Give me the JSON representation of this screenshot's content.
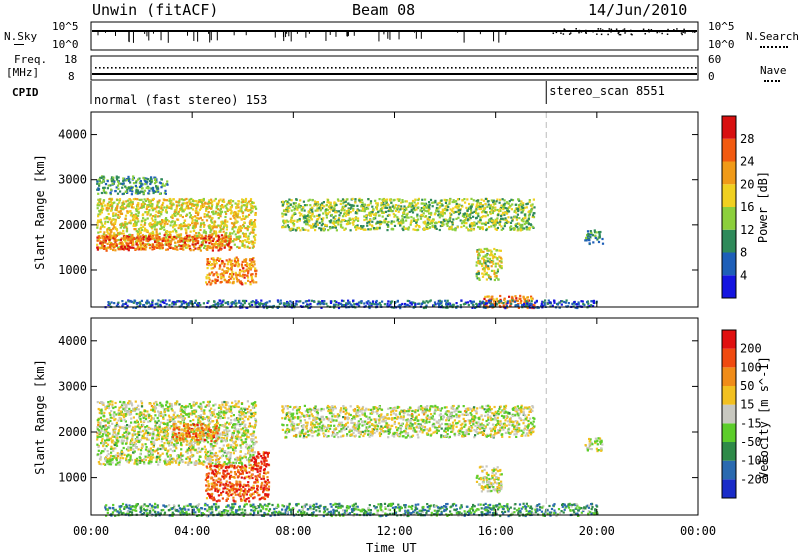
{
  "header": {
    "station": "Unwin (fitACF)",
    "beam": "Beam 08",
    "date": "14/Jun/2010"
  },
  "top_panels": {
    "nsky_label": "N.Sky",
    "nsky_ticks": [
      "10^5",
      "10^0"
    ],
    "nsearch_label": "N.Search",
    "nsearch_ticks": [
      "10^5",
      "10^0"
    ],
    "freq_label": "Freq.",
    "freq_unit": "[MHz]",
    "freq_ticks": [
      "18",
      "8"
    ],
    "nave_label": "Nave",
    "nave_ticks": [
      "60",
      "0"
    ],
    "cpid_label": "CPID",
    "cpid_segments": [
      {
        "start": 0,
        "end": 18,
        "label": "normal (fast stereo) 153"
      },
      {
        "start": 18,
        "end": 24,
        "label": "stereo_scan 8551"
      }
    ]
  },
  "x_axis": {
    "label": "Time UT",
    "ticks": [
      "00:00",
      "04:00",
      "08:00",
      "12:00",
      "16:00",
      "20:00",
      "00:00"
    ],
    "range_hours": [
      0,
      24
    ]
  },
  "chart_data": [
    {
      "type": "heatmap",
      "title": "Power",
      "ylabel": "Slant Range [km]",
      "y_ticks": [
        "1000",
        "2000",
        "3000",
        "4000"
      ],
      "ylim": [
        180,
        4500
      ],
      "xlim": [
        0,
        24
      ],
      "colorbar": {
        "label": "Power [dB]",
        "ticks": [
          "4",
          "8",
          "12",
          "16",
          "20",
          "24",
          "28"
        ],
        "colors": [
          "#1515e0",
          "#1e5fb8",
          "#2f8a5a",
          "#8ccf3c",
          "#f0d020",
          "#f09a18",
          "#f25a10",
          "#d81010"
        ]
      },
      "bands": [
        {
          "t0": 0.2,
          "t1": 6.5,
          "r0": 1500,
          "r1": 2600,
          "level": 0.55
        },
        {
          "t0": 0.2,
          "t1": 5.5,
          "r0": 1450,
          "r1": 1800,
          "level": 0.8
        },
        {
          "t0": 4.5,
          "t1": 6.5,
          "r0": 700,
          "r1": 1300,
          "level": 0.72
        },
        {
          "t0": 0.2,
          "t1": 3.0,
          "r0": 2700,
          "r1": 3100,
          "level": 0.3
        },
        {
          "t0": 7.5,
          "t1": 17.5,
          "r0": 1900,
          "r1": 2600,
          "level": 0.45
        },
        {
          "t0": 15.2,
          "t1": 16.2,
          "r0": 800,
          "r1": 1500,
          "level": 0.5
        },
        {
          "t0": 15.5,
          "t1": 17.5,
          "r0": 180,
          "r1": 450,
          "level": 0.75
        },
        {
          "t0": 0.5,
          "t1": 20.0,
          "r0": 180,
          "r1": 350,
          "level": 0.2
        },
        {
          "t0": 19.5,
          "t1": 20.2,
          "r0": 1600,
          "r1": 1900,
          "level": 0.3
        }
      ]
    },
    {
      "type": "heatmap",
      "title": "Velocity",
      "ylabel": "Slant Range [km]",
      "y_ticks": [
        "1000",
        "2000",
        "3000",
        "4000"
      ],
      "ylim": [
        180,
        4500
      ],
      "xlim": [
        0,
        24
      ],
      "colorbar": {
        "label": "Velocity [m s^-1]",
        "ticks": [
          "200",
          "100",
          "50",
          "15",
          "-15",
          "-50",
          "-100",
          "-200"
        ],
        "colors": [
          "#1a2cc8",
          "#2a6ab0",
          "#2e8a48",
          "#5ccd2a",
          "#c8c8c0",
          "#f2c020",
          "#f08c18",
          "#f04a10",
          "#e01010"
        ]
      },
      "bands": [
        {
          "t0": 0.2,
          "t1": 6.5,
          "r0": 1300,
          "r1": 2700,
          "level": 0.5
        },
        {
          "t0": 3.2,
          "t1": 5.0,
          "r0": 1800,
          "r1": 2200,
          "level": 0.75
        },
        {
          "t0": 4.5,
          "t1": 7.0,
          "r0": 500,
          "r1": 1300,
          "level": 0.82
        },
        {
          "t0": 6.3,
          "t1": 7.0,
          "r0": 1200,
          "r1": 1600,
          "level": 0.92
        },
        {
          "t0": 7.5,
          "t1": 17.5,
          "r0": 1900,
          "r1": 2600,
          "level": 0.5
        },
        {
          "t0": 15.2,
          "t1": 16.2,
          "r0": 700,
          "r1": 1300,
          "level": 0.5
        },
        {
          "t0": 0.5,
          "t1": 20.0,
          "r0": 180,
          "r1": 450,
          "level": 0.3
        },
        {
          "t0": 19.5,
          "t1": 20.2,
          "r0": 1600,
          "r1": 1900,
          "level": 0.5
        }
      ]
    }
  ]
}
